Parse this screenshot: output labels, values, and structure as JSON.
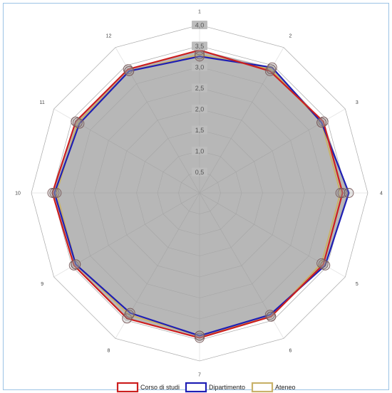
{
  "chart_data": {
    "type": "radar",
    "categories": [
      "1",
      "2",
      "3",
      "4",
      "5",
      "6",
      "7",
      "8",
      "9",
      "10",
      "11",
      "12"
    ],
    "rmax": 4.0,
    "ticks": [
      "0,5",
      "1,0",
      "1,5",
      "2,0",
      "2,5",
      "3,0",
      "3,5",
      "4,0"
    ],
    "tick_values": [
      0.5,
      1.0,
      1.5,
      2.0,
      2.5,
      3.0,
      3.5,
      4.0
    ],
    "series": [
      {
        "name": "Corso di studi",
        "color": "#cc1f1f",
        "values": [
          3.4,
          3.35,
          3.4,
          3.4,
          3.4,
          3.4,
          3.45,
          3.45,
          3.45,
          3.5,
          3.4,
          3.4
        ]
      },
      {
        "name": "Dipartimento",
        "color": "#1f1fb4",
        "values": [
          3.25,
          3.45,
          3.35,
          3.55,
          3.45,
          3.35,
          3.4,
          3.3,
          3.4,
          3.45,
          3.3,
          3.35
        ]
      },
      {
        "name": "Ateneo",
        "color": "#c8b26a",
        "values": [
          3.3,
          3.4,
          3.35,
          3.35,
          3.35,
          3.4,
          3.4,
          3.35,
          3.4,
          3.4,
          3.35,
          3.35
        ]
      }
    ],
    "fill_color": "#b3b3b3",
    "grid": true,
    "legend_position": "bottom"
  }
}
